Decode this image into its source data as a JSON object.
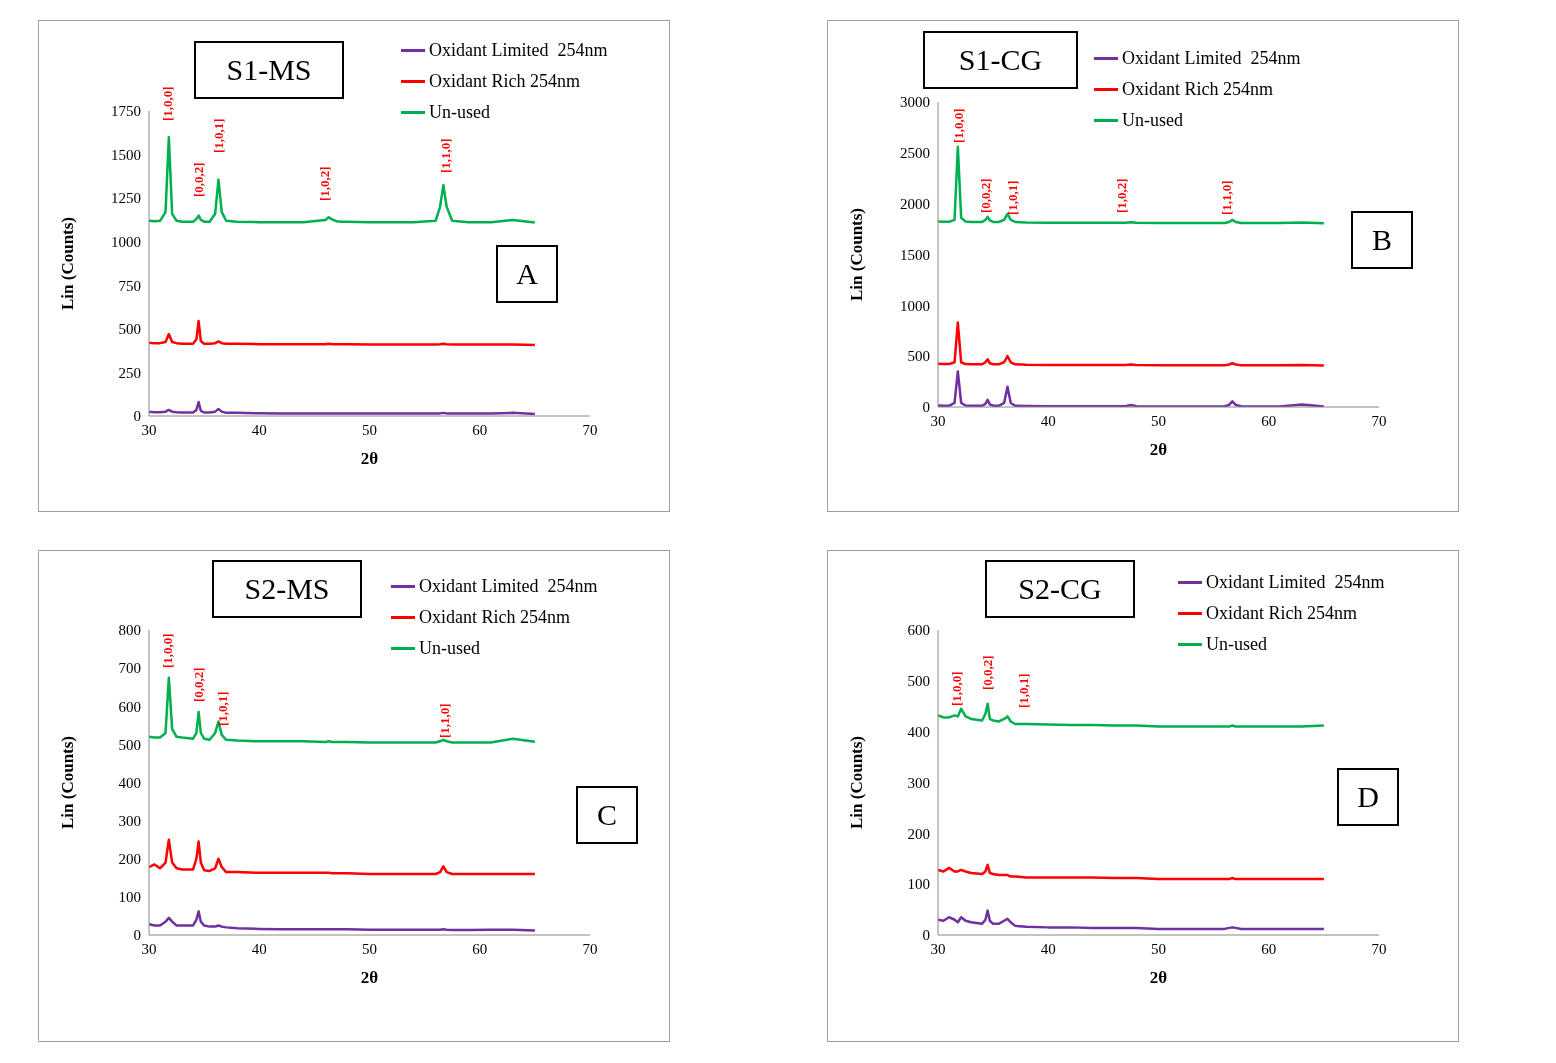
{
  "chart_data": [
    {
      "type": "line",
      "title": "S1-MS",
      "xlabel": "2θ",
      "ylabel": "Lin (Counts)",
      "xlim": [
        30,
        70
      ],
      "xticks": [
        30,
        40,
        50,
        60,
        70
      ],
      "ylim": [
        0,
        1750
      ],
      "yticks": [
        0,
        250,
        500,
        750,
        1000,
        1250,
        1500,
        1750
      ],
      "legend": "top right",
      "x": [
        30,
        30.5,
        31,
        31.5,
        31.8,
        32.1,
        32.5,
        33,
        34,
        34.3,
        34.5,
        34.7,
        35,
        35.5,
        36,
        36.3,
        36.6,
        37,
        38,
        40,
        42,
        44,
        46,
        46.3,
        46.6,
        47,
        47.5,
        48,
        50,
        52,
        54,
        56,
        56.4,
        56.7,
        57,
        57.5,
        59,
        61,
        63,
        65
      ],
      "series": [
        {
          "name": "Oxidant Limited  254nm",
          "color": "#7030a0",
          "values": [
            25,
            22,
            22,
            25,
            35,
            25,
            22,
            20,
            20,
            35,
            80,
            30,
            20,
            20,
            25,
            40,
            25,
            18,
            18,
            16,
            15,
            15,
            15,
            15,
            15,
            15,
            15,
            15,
            14,
            14,
            14,
            14,
            15,
            18,
            15,
            14,
            14,
            14,
            18,
            12
          ]
        },
        {
          "name": "Oxidant Rich 254nm",
          "color": "#ff0000",
          "values": [
            420,
            418,
            418,
            425,
            470,
            425,
            418,
            415,
            415,
            440,
            545,
            430,
            415,
            415,
            418,
            428,
            418,
            415,
            415,
            412,
            412,
            412,
            412,
            414,
            412,
            412,
            412,
            412,
            410,
            410,
            410,
            410,
            412,
            415,
            412,
            410,
            410,
            410,
            410,
            408
          ]
        },
        {
          "name": "Un-used",
          "color": "#00b050",
          "values": [
            1120,
            1118,
            1120,
            1170,
            1600,
            1160,
            1120,
            1115,
            1115,
            1130,
            1150,
            1125,
            1115,
            1115,
            1160,
            1355,
            1170,
            1120,
            1115,
            1112,
            1112,
            1112,
            1125,
            1140,
            1128,
            1118,
            1115,
            1115,
            1112,
            1112,
            1112,
            1120,
            1200,
            1325,
            1200,
            1120,
            1112,
            1112,
            1125,
            1110
          ]
        }
      ],
      "annotations": [
        "A",
        "[1,0,0]",
        "[0,0,2]",
        "[1,0,1]",
        "[1,0,2]",
        "[1,1,0]"
      ]
    },
    {
      "type": "line",
      "title": "S1-CG",
      "xlabel": "2θ",
      "ylabel": "Lin (Counts)",
      "xlim": [
        30,
        70
      ],
      "xticks": [
        30,
        40,
        50,
        60,
        70
      ],
      "ylim": [
        0,
        3000
      ],
      "yticks": [
        0,
        500,
        1000,
        1500,
        2000,
        2500,
        3000
      ],
      "legend": "top right",
      "x": [
        30,
        30.5,
        31,
        31.5,
        31.8,
        32.1,
        32.5,
        33,
        34,
        34.3,
        34.5,
        34.7,
        35,
        35.5,
        36,
        36.3,
        36.6,
        37,
        38,
        40,
        42,
        44,
        46,
        46.3,
        46.6,
        47,
        47.5,
        48,
        50,
        52,
        54,
        56,
        56.4,
        56.7,
        57,
        57.5,
        59,
        61,
        63,
        65
      ],
      "series": [
        {
          "name": "Oxidant Limited  254nm",
          "color": "#7030a0",
          "values": [
            15,
            12,
            12,
            40,
            350,
            40,
            15,
            12,
            12,
            30,
            70,
            25,
            12,
            12,
            40,
            200,
            40,
            12,
            10,
            8,
            8,
            8,
            8,
            8,
            8,
            8,
            20,
            8,
            6,
            6,
            6,
            8,
            20,
            55,
            20,
            8,
            6,
            6,
            25,
            5
          ]
        },
        {
          "name": "Oxidant Rich 254nm",
          "color": "#ff0000",
          "values": [
            425,
            422,
            422,
            440,
            830,
            440,
            422,
            420,
            420,
            440,
            470,
            430,
            420,
            420,
            440,
            500,
            440,
            420,
            415,
            412,
            412,
            412,
            412,
            412,
            412,
            412,
            418,
            412,
            410,
            410,
            410,
            410,
            418,
            430,
            418,
            410,
            410,
            410,
            412,
            408
          ]
        },
        {
          "name": "Un-used",
          "color": "#00b050",
          "values": [
            1825,
            1822,
            1822,
            1840,
            2560,
            1860,
            1825,
            1820,
            1820,
            1840,
            1870,
            1835,
            1820,
            1820,
            1840,
            1900,
            1840,
            1820,
            1815,
            1812,
            1812,
            1812,
            1812,
            1812,
            1812,
            1812,
            1818,
            1812,
            1810,
            1810,
            1810,
            1810,
            1820,
            1840,
            1820,
            1810,
            1810,
            1810,
            1815,
            1808
          ]
        }
      ],
      "annotations": [
        "B",
        "[1,0,0]",
        "[0,0,2]",
        "[1,0,1]",
        "[1,0,2]",
        "[1,1,0]"
      ]
    },
    {
      "type": "line",
      "title": "S2-MS",
      "xlabel": "2θ",
      "ylabel": "Lin (Counts)",
      "xlim": [
        30,
        70
      ],
      "xticks": [
        30,
        40,
        50,
        60,
        70
      ],
      "ylim": [
        0,
        800
      ],
      "yticks": [
        0,
        100,
        200,
        300,
        400,
        500,
        600,
        700,
        800
      ],
      "legend": "top right",
      "x": [
        30,
        30.5,
        31,
        31.5,
        31.8,
        32.1,
        32.5,
        33,
        34,
        34.3,
        34.5,
        34.7,
        35,
        35.5,
        36,
        36.3,
        36.6,
        37,
        38,
        40,
        42,
        44,
        46,
        46.3,
        46.6,
        47,
        47.5,
        48,
        50,
        52,
        54,
        56,
        56.4,
        56.7,
        57,
        57.5,
        59,
        61,
        63,
        65
      ],
      "series": [
        {
          "name": "Oxidant Limited  254nm",
          "color": "#7030a0",
          "values": [
            28,
            25,
            25,
            35,
            45,
            35,
            25,
            25,
            25,
            40,
            62,
            35,
            25,
            22,
            22,
            25,
            22,
            20,
            18,
            16,
            15,
            15,
            15,
            15,
            15,
            15,
            15,
            15,
            14,
            14,
            14,
            14,
            14,
            15,
            14,
            13,
            13,
            14,
            14,
            12
          ]
        },
        {
          "name": "Oxidant Rich 254nm",
          "color": "#ff0000",
          "values": [
            178,
            185,
            175,
            190,
            250,
            190,
            175,
            172,
            172,
            200,
            245,
            190,
            170,
            168,
            175,
            200,
            178,
            165,
            165,
            163,
            163,
            163,
            163,
            163,
            162,
            162,
            162,
            162,
            160,
            160,
            160,
            160,
            165,
            180,
            165,
            160,
            160,
            160,
            160,
            160
          ]
        },
        {
          "name": "Un-used",
          "color": "#00b050",
          "values": [
            520,
            518,
            518,
            530,
            675,
            540,
            520,
            518,
            515,
            530,
            585,
            530,
            515,
            512,
            530,
            560,
            525,
            512,
            510,
            508,
            508,
            508,
            506,
            508,
            506,
            506,
            506,
            506,
            505,
            505,
            505,
            505,
            508,
            512,
            508,
            505,
            505,
            505,
            515,
            507
          ]
        }
      ],
      "annotations": [
        "C",
        "[1,0,0]",
        "[0,0,2]",
        "[1,0,1]",
        "[1,1,0]"
      ]
    },
    {
      "type": "line",
      "title": "S2-CG",
      "xlabel": "2θ",
      "ylabel": "Lin (Counts)",
      "xlim": [
        30,
        70
      ],
      "xticks": [
        30,
        40,
        50,
        60,
        70
      ],
      "ylim": [
        0,
        600
      ],
      "yticks": [
        0,
        100,
        200,
        300,
        400,
        500,
        600
      ],
      "legend": "top right",
      "x": [
        30,
        30.5,
        31,
        31.5,
        31.8,
        32.1,
        32.5,
        33,
        34,
        34.3,
        34.5,
        34.7,
        35,
        35.5,
        36,
        36.3,
        36.6,
        37,
        38,
        40,
        42,
        44,
        46,
        46.3,
        46.6,
        47,
        47.5,
        48,
        50,
        52,
        54,
        56,
        56.4,
        56.7,
        57,
        57.5,
        59,
        61,
        63,
        65
      ],
      "series": [
        {
          "name": "Oxidant Limited  254nm",
          "color": "#7030a0",
          "values": [
            30,
            28,
            35,
            30,
            25,
            35,
            28,
            25,
            22,
            30,
            48,
            28,
            22,
            22,
            28,
            32,
            25,
            18,
            16,
            15,
            15,
            14,
            14,
            14,
            14,
            14,
            14,
            14,
            12,
            12,
            12,
            12,
            14,
            15,
            14,
            12,
            12,
            12,
            12,
            12
          ]
        },
        {
          "name": "Oxidant Rich 254nm",
          "color": "#ff0000",
          "values": [
            128,
            125,
            132,
            125,
            125,
            128,
            125,
            122,
            120,
            125,
            138,
            122,
            120,
            118,
            118,
            118,
            115,
            115,
            113,
            113,
            113,
            113,
            112,
            112,
            112,
            112,
            112,
            112,
            110,
            110,
            110,
            110,
            110,
            112,
            110,
            110,
            110,
            110,
            110,
            110
          ]
        },
        {
          "name": "Un-used",
          "color": "#00b050",
          "values": [
            432,
            428,
            428,
            432,
            430,
            445,
            430,
            425,
            422,
            435,
            455,
            425,
            422,
            420,
            425,
            430,
            420,
            415,
            415,
            414,
            413,
            413,
            412,
            412,
            412,
            412,
            412,
            412,
            410,
            410,
            410,
            410,
            410,
            412,
            410,
            410,
            410,
            410,
            410,
            412
          ]
        }
      ],
      "annotations": [
        "D",
        "[1,0,0]",
        "[0,0,2]",
        "[1,0,1]"
      ]
    }
  ]
}
